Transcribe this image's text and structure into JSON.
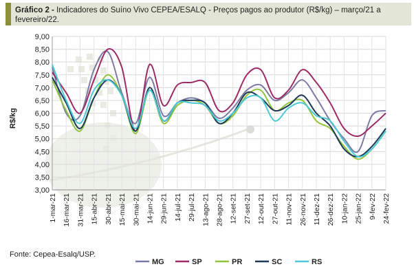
{
  "header": {
    "label": "Gráfico 2 -",
    "text": "Indicadores do Suíno Vivo CEPEA/ESALQ - Preços pagos ao produtor (R$/kg) – março/21 a fevereiro/22."
  },
  "source": "Fonte: Cepea-Esalq/USP.",
  "chart_data": {
    "type": "line",
    "title": "",
    "xlabel": "",
    "ylabel": "R$/kg",
    "ylim": [
      3.0,
      9.0
    ],
    "yticks": [
      "3,00",
      "3,50",
      "4,00",
      "4,50",
      "5,00",
      "5,50",
      "6,00",
      "6,50",
      "7,00",
      "7,50",
      "8,00",
      "8,50",
      "9,00"
    ],
    "categories": [
      "1-mar-21",
      "16-mar-21",
      "31-mar-21",
      "15-abr-21",
      "30-abr-21",
      "15-mai-21",
      "30-mai-21",
      "14-jun-21",
      "29-jun-21",
      "14-jul-21",
      "29-jul-21",
      "13-ago-21",
      "28-ago-21",
      "12-set-21",
      "27-set-21",
      "12-out-21",
      "27-out-21",
      "11-nov-21",
      "26-nov-21",
      "11-dez-21",
      "26-dez-21",
      "10-jan-22",
      "25-jan-22",
      "9-fev-22",
      "24-fev-22"
    ],
    "grid": true,
    "legend": "bottom",
    "series": [
      {
        "name": "MG",
        "color": "#7b7ba6",
        "values": [
          7.8,
          6.0,
          5.9,
          7.7,
          8.4,
          6.8,
          5.6,
          7.4,
          5.9,
          6.4,
          6.6,
          6.4,
          5.8,
          6.2,
          6.9,
          7.1,
          6.5,
          6.8,
          7.3,
          6.6,
          5.7,
          5.0,
          4.5,
          5.9,
          6.1
        ]
      },
      {
        "name": "SP",
        "color": "#9e2a64",
        "values": [
          7.6,
          6.8,
          6.0,
          7.3,
          8.5,
          7.8,
          5.3,
          7.9,
          6.3,
          7.1,
          7.2,
          7.2,
          6.1,
          6.4,
          7.5,
          7.7,
          6.6,
          6.9,
          7.7,
          7.2,
          6.4,
          5.4,
          5.1,
          5.5,
          6.0
        ]
      },
      {
        "name": "PR",
        "color": "#92c43e",
        "values": [
          7.3,
          6.1,
          5.3,
          6.6,
          7.5,
          6.7,
          5.2,
          6.9,
          5.6,
          6.3,
          6.5,
          6.3,
          5.6,
          5.9,
          6.7,
          6.9,
          6.1,
          6.4,
          6.5,
          5.7,
          5.4,
          4.7,
          4.2,
          4.6,
          5.3
        ]
      },
      {
        "name": "SC",
        "color": "#1d3957",
        "values": [
          7.4,
          6.4,
          5.4,
          6.6,
          7.3,
          6.7,
          5.3,
          7.0,
          5.7,
          6.4,
          6.5,
          6.4,
          5.6,
          6.0,
          6.8,
          6.6,
          6.1,
          6.3,
          6.7,
          6.0,
          5.5,
          4.6,
          4.3,
          4.7,
          5.4
        ]
      },
      {
        "name": "RS",
        "color": "#4cc9d6",
        "values": [
          7.9,
          6.5,
          5.6,
          6.9,
          7.3,
          6.7,
          5.4,
          6.9,
          5.7,
          6.4,
          6.4,
          6.3,
          5.7,
          6.0,
          6.6,
          6.6,
          5.7,
          6.2,
          6.4,
          5.9,
          5.7,
          4.9,
          4.3,
          4.6,
          5.3
        ]
      }
    ]
  }
}
